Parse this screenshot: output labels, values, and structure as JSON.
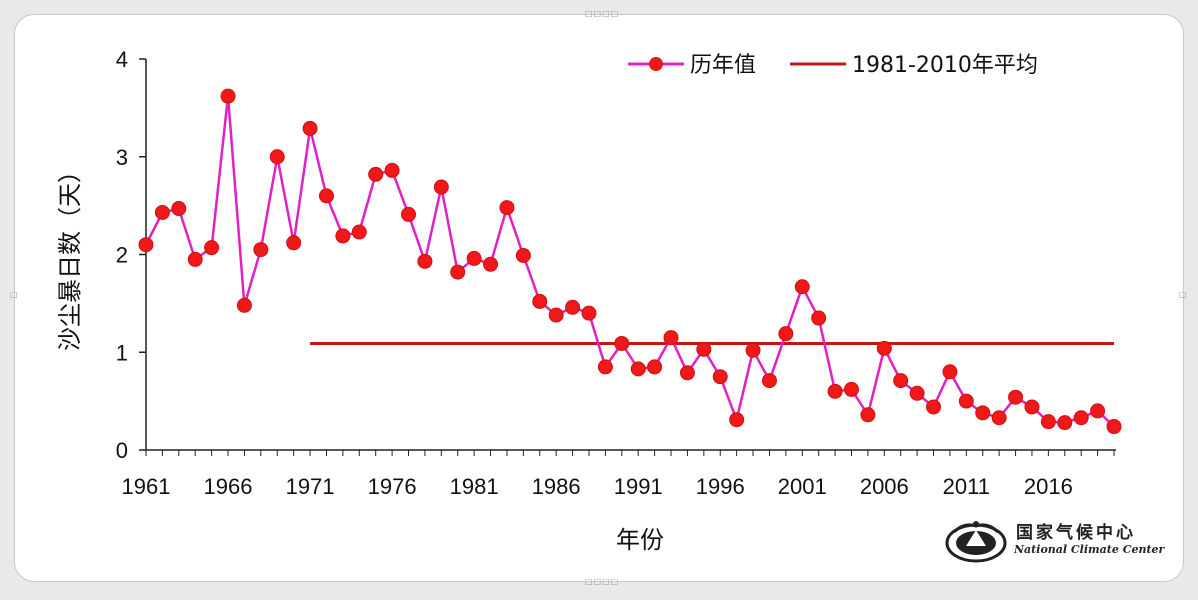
{
  "chart_data": {
    "type": "line",
    "xlabel": "年份",
    "ylabel": "沙尘暴日数（天）",
    "xlim": [
      1961,
      2020
    ],
    "ylim": [
      0,
      4
    ],
    "yticks": [
      0,
      1,
      2,
      3,
      4
    ],
    "xticks": [
      1961,
      1966,
      1971,
      1976,
      1981,
      1986,
      1991,
      1996,
      2001,
      2006,
      2011,
      2016
    ],
    "legend_position": "top-right",
    "series": [
      {
        "name": "历年值",
        "type": "line-markers",
        "line_color": "#e020c8",
        "marker_color": "#f01818",
        "x": [
          1961,
          1962,
          1963,
          1964,
          1965,
          1966,
          1967,
          1968,
          1969,
          1970,
          1971,
          1972,
          1973,
          1974,
          1975,
          1976,
          1977,
          1978,
          1979,
          1980,
          1981,
          1982,
          1983,
          1984,
          1985,
          1986,
          1987,
          1988,
          1989,
          1990,
          1991,
          1992,
          1993,
          1994,
          1995,
          1996,
          1997,
          1998,
          1999,
          2000,
          2001,
          2002,
          2003,
          2004,
          2005,
          2006,
          2007,
          2008,
          2009,
          2010,
          2011,
          2012,
          2013,
          2014,
          2015,
          2016,
          2017,
          2018,
          2019,
          2020
        ],
        "values": [
          2.1,
          2.43,
          2.47,
          1.95,
          2.07,
          3.62,
          1.48,
          2.05,
          3.0,
          2.12,
          3.29,
          2.6,
          2.19,
          2.23,
          2.82,
          2.86,
          2.41,
          1.93,
          2.69,
          1.82,
          1.96,
          1.9,
          2.48,
          1.99,
          1.52,
          1.38,
          1.46,
          1.4,
          0.85,
          1.09,
          0.83,
          0.85,
          1.15,
          0.79,
          1.03,
          0.75,
          0.31,
          1.02,
          0.71,
          1.19,
          1.67,
          1.35,
          0.6,
          0.62,
          0.36,
          1.04,
          0.71,
          0.58,
          0.44,
          0.8,
          0.5,
          0.38,
          0.33,
          0.54,
          0.44,
          0.29,
          0.28,
          0.33,
          0.4,
          0.24
        ]
      },
      {
        "name": "1981-2010年平均",
        "type": "line",
        "color": "#c01818",
        "x": [
          1971,
          2020
        ],
        "values": [
          1.09,
          1.09
        ]
      }
    ]
  },
  "logo": {
    "name_cn": "国家气候中心",
    "name_en": "National Climate Center",
    "emblem_icon": "cma-emblem-icon"
  }
}
